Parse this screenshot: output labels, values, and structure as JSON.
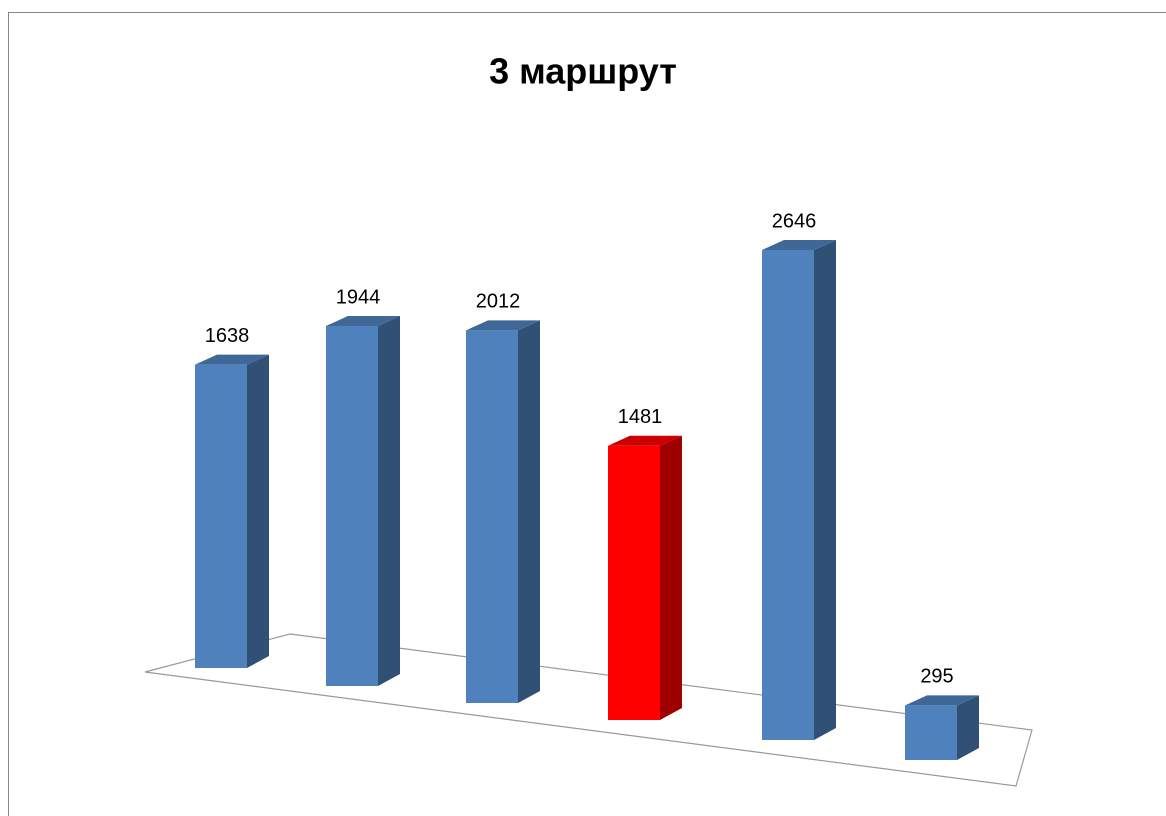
{
  "chart_data": {
    "type": "bar3d",
    "title": "3 маршрут",
    "values": [
      1638,
      1944,
      2012,
      1481,
      2646,
      295
    ],
    "colors": [
      "#4f81bd",
      "#4f81bd",
      "#4f81bd",
      "#ff0000",
      "#4f81bd",
      "#4f81bd"
    ]
  }
}
